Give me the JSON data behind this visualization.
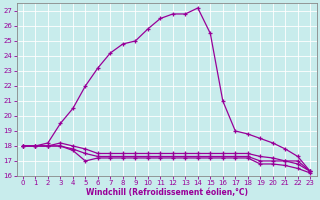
{
  "xlabel": "Windchill (Refroidissement éolien,°C)",
  "background_color": "#c8ecec",
  "line_color": "#990099",
  "xlim": [
    -0.5,
    23.5
  ],
  "ylim": [
    16,
    27.5
  ],
  "xticks": [
    0,
    1,
    2,
    3,
    4,
    5,
    6,
    7,
    8,
    9,
    10,
    11,
    12,
    13,
    14,
    15,
    16,
    17,
    18,
    19,
    20,
    21,
    22,
    23
  ],
  "yticks": [
    16,
    17,
    18,
    19,
    20,
    21,
    22,
    23,
    24,
    25,
    26,
    27
  ],
  "main_x": [
    0,
    1,
    2,
    3,
    4,
    5,
    6,
    7,
    8,
    9,
    10,
    11,
    12,
    13,
    14,
    15,
    16,
    17,
    18,
    19,
    20,
    21,
    22,
    23
  ],
  "main_y": [
    18.0,
    18.0,
    18.2,
    19.5,
    20.5,
    22.0,
    23.2,
    24.2,
    24.8,
    25.0,
    25.8,
    26.5,
    26.8,
    26.8,
    27.2,
    25.5,
    21.0,
    19.0,
    18.8,
    18.5,
    18.2,
    17.8,
    17.3,
    16.3
  ],
  "line2_x": [
    0,
    1,
    2,
    3,
    4,
    5,
    6,
    7,
    8,
    9,
    10,
    11,
    12,
    13,
    14,
    15,
    16,
    17,
    18,
    19,
    20,
    21,
    22,
    23
  ],
  "line2_y": [
    18.0,
    18.0,
    18.0,
    18.2,
    18.0,
    17.8,
    17.5,
    17.5,
    17.5,
    17.5,
    17.5,
    17.5,
    17.5,
    17.5,
    17.5,
    17.5,
    17.5,
    17.5,
    17.5,
    17.3,
    17.2,
    17.0,
    17.0,
    16.3
  ],
  "line3_x": [
    0,
    1,
    2,
    3,
    4,
    5,
    6,
    7,
    8,
    9,
    10,
    11,
    12,
    13,
    14,
    15,
    16,
    17,
    18,
    19,
    20,
    21,
    22,
    23
  ],
  "line3_y": [
    18.0,
    18.0,
    18.0,
    18.0,
    17.8,
    17.5,
    17.3,
    17.3,
    17.3,
    17.3,
    17.3,
    17.3,
    17.3,
    17.3,
    17.3,
    17.3,
    17.3,
    17.3,
    17.3,
    17.0,
    17.0,
    17.0,
    16.8,
    16.3
  ],
  "line4_x": [
    0,
    1,
    2,
    3,
    4,
    5,
    6,
    7,
    8,
    9,
    10,
    11,
    12,
    13,
    14,
    15,
    16,
    17,
    18,
    19,
    20,
    21,
    22,
    23
  ],
  "line4_y": [
    18.0,
    18.0,
    18.0,
    18.0,
    17.7,
    17.0,
    17.2,
    17.2,
    17.2,
    17.2,
    17.2,
    17.2,
    17.2,
    17.2,
    17.2,
    17.2,
    17.2,
    17.2,
    17.2,
    16.8,
    16.8,
    16.7,
    16.5,
    16.2
  ]
}
